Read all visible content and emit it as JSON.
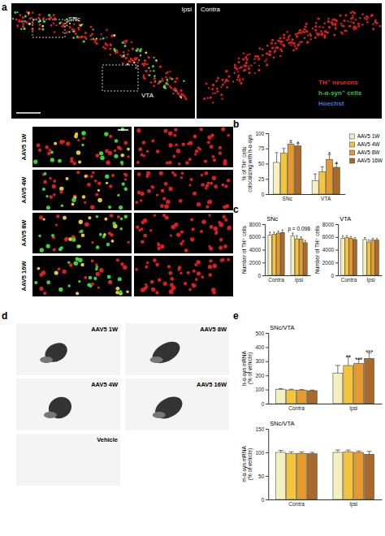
{
  "figure": {
    "panel_labels": [
      "a",
      "b",
      "c",
      "d",
      "e"
    ],
    "panel_a": {
      "hemispheres": [
        "Ipsi",
        "Contra"
      ],
      "regions": [
        "SNc",
        "VTA"
      ],
      "legend": [
        {
          "label": "TH⁺ neurons",
          "color": "#e8262a"
        },
        {
          "label": "h-α-syn⁺ cells",
          "color": "#35c435"
        },
        {
          "label": "Hoechst",
          "color": "#3a78d8"
        }
      ],
      "rows": [
        "AAV5 1W",
        "AAV5 4W",
        "AAV5 8W",
        "AAV5 16W"
      ]
    },
    "panel_d": {
      "images": [
        "AAV5 1W",
        "AAV5 8W",
        "AAV5 4W",
        "AAV5 16W",
        "Vehicle"
      ]
    }
  },
  "chart_data": [
    {
      "type": "bar",
      "y_label": "% of TH⁺ cells colocalizing with h-α-syn",
      "categories": [
        "SNc",
        "VTA"
      ],
      "series": [
        {
          "name": "AAV5 1W",
          "color": "#f6efc0",
          "values": [
            52,
            22
          ],
          "errors": [
            16,
            11
          ]
        },
        {
          "name": "AAV5 4W",
          "color": "#f2c53d",
          "values": [
            67,
            37
          ],
          "errors": [
            8,
            8
          ]
        },
        {
          "name": "AAV5 8W",
          "color": "#e59a2f",
          "values": [
            82,
            57
          ],
          "errors": [
            3,
            8
          ]
        },
        {
          "name": "AAV5 16W",
          "color": "#a86a2c",
          "values": [
            79,
            44
          ],
          "errors": [
            4,
            6
          ]
        }
      ],
      "ylim": [
        0,
        100
      ],
      "yticks": [
        0,
        25,
        50,
        75,
        100
      ],
      "legend": "right",
      "annotations": [
        {
          "text": "*",
          "series": 2,
          "category": 0
        },
        {
          "text": "*",
          "series": 3,
          "category": 0
        },
        {
          "text": "*",
          "series": 2,
          "category": 1
        },
        {
          "text": "*",
          "series": 3,
          "category": 1
        }
      ]
    },
    {
      "type": "bar",
      "title": "SNc",
      "y_label": "Number of TH⁺ cells",
      "categories": [
        "Contra",
        "Ipsi"
      ],
      "series": [
        {
          "color": "#f6efc0",
          "values": [
            6300,
            6200
          ],
          "errors": [
            450,
            400
          ]
        },
        {
          "color": "#f2c53d",
          "values": [
            6400,
            5700
          ],
          "errors": [
            350,
            500
          ]
        },
        {
          "color": "#e59a2f",
          "values": [
            6600,
            5700
          ],
          "errors": [
            300,
            300
          ]
        },
        {
          "color": "#a86a2c",
          "values": [
            6700,
            5100
          ],
          "errors": [
            400,
            350
          ]
        }
      ],
      "ylim": [
        0,
        8000
      ],
      "yticks": [
        0,
        2000,
        4000,
        6000,
        8000
      ],
      "annotations": [
        {
          "text": "p = 0.098",
          "category": 1
        }
      ]
    },
    {
      "type": "bar",
      "title": "VTA",
      "y_label": "Number of TH⁺ cells",
      "categories": [
        "Contra",
        "Ipsi"
      ],
      "series": [
        {
          "color": "#f6efc0",
          "values": [
            5800,
            5600
          ],
          "errors": [
            400,
            300
          ]
        },
        {
          "color": "#f2c53d",
          "values": [
            5900,
            5200
          ],
          "errors": [
            300,
            350
          ]
        },
        {
          "color": "#e59a2f",
          "values": [
            5800,
            5500
          ],
          "errors": [
            250,
            300
          ]
        },
        {
          "color": "#a86a2c",
          "values": [
            5600,
            5500
          ],
          "errors": [
            300,
            250
          ]
        }
      ],
      "ylim": [
        0,
        8000
      ],
      "yticks": [
        0,
        2000,
        4000,
        6000,
        8000
      ]
    },
    {
      "type": "bar",
      "title": "SNc/VTA",
      "y_label": "h-α-syn mRNA (% of vehicle)",
      "categories": [
        "Contra",
        "Ipsi"
      ],
      "series": [
        {
          "color": "#f6efc0",
          "values": [
            100,
            215
          ],
          "errors": [
            6,
            55
          ]
        },
        {
          "color": "#f2c53d",
          "values": [
            97,
            270
          ],
          "errors": [
            5,
            60
          ]
        },
        {
          "color": "#e59a2f",
          "values": [
            95,
            285
          ],
          "errors": [
            5,
            28
          ]
        },
        {
          "color": "#a86a2c",
          "values": [
            92,
            320
          ],
          "errors": [
            4,
            40
          ]
        }
      ],
      "ylim": [
        0,
        500
      ],
      "yticks": [
        0,
        100,
        200,
        300,
        400,
        500
      ],
      "annotations": [
        {
          "text": "**",
          "series": 1,
          "category": 1
        },
        {
          "text": "***",
          "series": 2,
          "category": 1
        },
        {
          "text": "***",
          "series": 3,
          "category": 1
        }
      ]
    },
    {
      "type": "bar",
      "title": "SNc/VTA",
      "y_label": "m-α-syn mRNA (% of vehicle)",
      "categories": [
        "Contra",
        "Ipsi"
      ],
      "series": [
        {
          "color": "#f6efc0",
          "values": [
            100,
            100
          ],
          "errors": [
            4,
            5
          ]
        },
        {
          "color": "#f2c53d",
          "values": [
            97,
            101
          ],
          "errors": [
            4,
            4
          ]
        },
        {
          "color": "#e59a2f",
          "values": [
            98,
            100
          ],
          "errors": [
            3,
            3
          ]
        },
        {
          "color": "#a86a2c",
          "values": [
            97,
            96
          ],
          "errors": [
            3,
            6
          ]
        }
      ],
      "ylim": [
        0,
        150
      ],
      "yticks": [
        0,
        50,
        100,
        150
      ]
    }
  ]
}
